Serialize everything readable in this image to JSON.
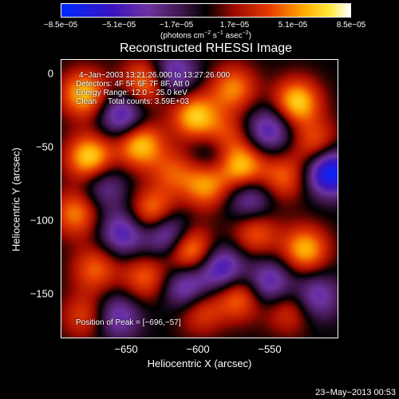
{
  "chart_data": {
    "type": "heatmap",
    "title": "Reconstructed RHESSI Image",
    "xlabel": "Heliocentric X (arcsec)",
    "ylabel": "Heliocentric Y (arcsec)",
    "xlim": [
      -700,
      -507
    ],
    "ylim": [
      -182,
      12
    ],
    "x_ticks": [
      "−650",
      "−600",
      "−550"
    ],
    "x_tick_values": [
      -650,
      -600,
      -550
    ],
    "y_ticks": [
      "0",
      "−50",
      "−100",
      "−150"
    ],
    "y_tick_values": [
      0,
      -50,
      -100,
      -150
    ],
    "colorbar": {
      "ticks": [
        "−8.5e−05",
        "−5.1e−05",
        "−1.7e−05",
        "1.7e−05",
        "5.1e−05",
        "8.5e−05"
      ],
      "tick_values": [
        -8.5e-05,
        -5.1e-05,
        -1.7e-05,
        1.7e-05,
        5.1e-05,
        8.5e-05
      ],
      "range": [
        -8.5e-05,
        8.5e-05
      ],
      "units_prefix": "(photons cm",
      "units_exp1": "−2",
      "units_mid": " s",
      "units_exp2": "−1",
      "units_mid2": " asec",
      "units_exp3": "−2",
      "units_suffix": ")"
    },
    "annotations": {
      "time_range": "4−Jan−2003 13:21:26.000 to 13:27:26.000",
      "detectors": "Detectors: 4F 5F 6F 7F 8F, Att 0",
      "energy": "Energy Range: 12.0 − 25.0 keV",
      "method": "Clean     Total counts: 3.59E+03",
      "peak": "Position of Peak = [−696,−57]"
    },
    "peak_position": [
      -696,
      -57
    ],
    "grid": false,
    "colormap": "blue-purple-black-red-yellow-white"
  },
  "footer": {
    "timestamp": "23−May−2013 00:53"
  }
}
